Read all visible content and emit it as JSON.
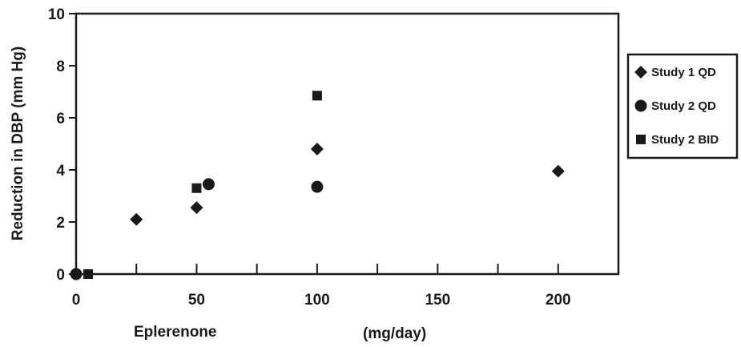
{
  "chart_data": {
    "type": "scatter",
    "title": "",
    "xlabel_left": "Eplerenone",
    "xlabel_right": "(mg/day)",
    "ylabel": "Reduction in DBP (mm Hg)",
    "xlim": [
      0,
      225
    ],
    "ylim": [
      0,
      10
    ],
    "x_ticks": [
      0,
      50,
      100,
      150,
      200
    ],
    "y_ticks": [
      0,
      2,
      4,
      6,
      8,
      10
    ],
    "grid": false,
    "legend_position": "right",
    "series": [
      {
        "name": "Study 1 QD",
        "marker": "diamond",
        "color": "#1a1a1a",
        "points": [
          [
            0,
            0
          ],
          [
            25,
            2.1
          ],
          [
            50,
            2.55
          ],
          [
            100,
            4.8
          ],
          [
            200,
            3.95
          ]
        ]
      },
      {
        "name": "Study 2 QD",
        "marker": "circle",
        "color": "#1a1a1a",
        "points": [
          [
            0,
            0
          ],
          [
            55,
            3.45
          ],
          [
            100,
            3.35
          ]
        ]
      },
      {
        "name": "Study 2 BID",
        "marker": "square",
        "color": "#1a1a1a",
        "points": [
          [
            5,
            0
          ],
          [
            50,
            3.3
          ],
          [
            100,
            6.85
          ]
        ]
      }
    ]
  }
}
